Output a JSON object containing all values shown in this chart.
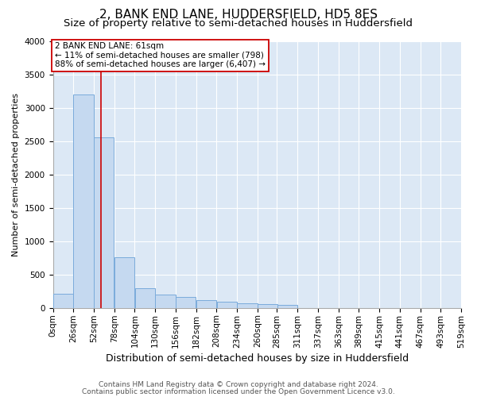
{
  "title1": "2, BANK END LANE, HUDDERSFIELD, HD5 8ES",
  "title2": "Size of property relative to semi-detached houses in Huddersfield",
  "xlabel": "Distribution of semi-detached houses by size in Huddersfield",
  "ylabel": "Number of semi-detached properties",
  "footer1": "Contains HM Land Registry data © Crown copyright and database right 2024.",
  "footer2": "Contains public sector information licensed under the Open Government Licence v3.0.",
  "property_size": 61,
  "annotation_line1": "2 BANK END LANE: 61sqm",
  "annotation_line2": "← 11% of semi-detached houses are smaller (798)",
  "annotation_line3": "88% of semi-detached houses are larger (6,407) →",
  "bar_color": "#c5d9f0",
  "bar_edge_color": "#7aabdb",
  "vline_color": "#cc0000",
  "annotation_box_color": "white",
  "annotation_box_edge": "#cc0000",
  "background_color": "#dce8f5",
  "bin_edges": [
    0,
    26,
    52,
    78,
    104,
    130,
    156,
    182,
    208,
    234,
    260,
    285,
    311,
    337,
    363,
    389,
    415,
    441,
    467,
    493,
    519
  ],
  "bar_heights": [
    210,
    3200,
    2550,
    760,
    290,
    205,
    160,
    115,
    90,
    70,
    55,
    40,
    0,
    0,
    0,
    0,
    0,
    0,
    0,
    0
  ],
  "ylim": [
    0,
    4000
  ],
  "yticks": [
    0,
    500,
    1000,
    1500,
    2000,
    2500,
    3000,
    3500,
    4000
  ],
  "grid_color": "white",
  "title1_fontsize": 11,
  "title2_fontsize": 9.5,
  "xlabel_fontsize": 9,
  "ylabel_fontsize": 8,
  "tick_fontsize": 7.5,
  "footer_fontsize": 6.5,
  "ann_fontsize": 7.5
}
